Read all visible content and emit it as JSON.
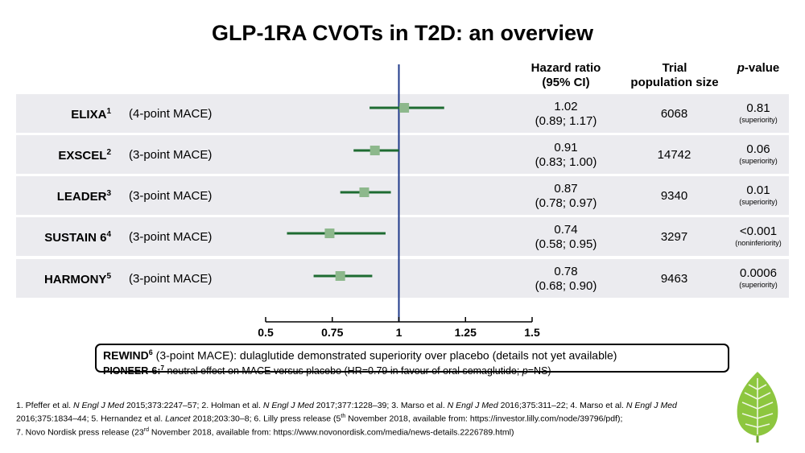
{
  "title": "GLP-1RA CVOTs in T2D: an overview",
  "headers": {
    "hr_line1": "Hazard ratio",
    "hr_line2": "(95% CI)",
    "pop_line1": "Trial",
    "pop_line2": "population size",
    "pval_italic": "p",
    "pval_rest": "-value"
  },
  "rows": [
    {
      "name": "ELIXA",
      "sup": "1",
      "mace": "(4-point MACE)",
      "hr": "1.02",
      "ci": "(0.89; 1.17)",
      "population": "6068",
      "p": "0.81",
      "p_type": "(superiority)"
    },
    {
      "name": "EXSCEL",
      "sup": "2",
      "mace": "(3-point MACE)",
      "hr": "0.91",
      "ci": "(0.83; 1.00)",
      "population": "14742",
      "p": "0.06",
      "p_type": "(superiority)"
    },
    {
      "name": "LEADER",
      "sup": "3",
      "mace": "(3-point MACE)",
      "hr": "0.87",
      "ci": "(0.78; 0.97)",
      "population": "9340",
      "p": "0.01",
      "p_type": "(superiority)"
    },
    {
      "name": "SUSTAIN 6",
      "sup": "4",
      "mace": "(3-point MACE)",
      "hr": "0.74",
      "ci": "(0.58; 0.95)",
      "population": "3297",
      "p": "<0.001",
      "p_type": "(noninferiority)"
    },
    {
      "name": "HARMONY",
      "sup": "5",
      "mace": "(3-point MACE)",
      "hr": "0.78",
      "ci": "(0.68; 0.90)",
      "population": "9463",
      "p": "0.0006",
      "p_type": "(superiority)"
    }
  ],
  "chart_data": {
    "type": "scatter",
    "subtype": "forest",
    "categories": [
      "ELIXA",
      "EXSCEL",
      "LEADER",
      "SUSTAIN 6",
      "HARMONY"
    ],
    "values": [
      1.02,
      0.91,
      0.87,
      0.74,
      0.78
    ],
    "lower": [
      0.89,
      0.83,
      0.78,
      0.58,
      0.68
    ],
    "upper": [
      1.17,
      1.0,
      0.97,
      0.95,
      0.9
    ],
    "xlim": [
      0.5,
      1.5
    ],
    "xticks": [
      "0.5",
      "0.75",
      "1",
      "1.25",
      "1.5"
    ],
    "reference_line": 1,
    "colors": {
      "ci": "#1e6b32",
      "marker": "#8db88c",
      "reference": "#1f3a8a",
      "row_bg": "#ebebef"
    }
  },
  "note": {
    "rewind_label": "REWIND",
    "rewind_sup": "6",
    "rewind_text": " (3-point MACE): dulaglutide demonstrated superiority over placebo (details not yet available)",
    "pioneer_label": "PIONEER-6:",
    "pioneer_sup": "7",
    "pioneer_text_a": " neutral effect on MACE versus placebo (HR=0.79 in favour of oral semaglutide; ",
    "pioneer_p": "p",
    "pioneer_text_b": "=NS)"
  },
  "references": {
    "r1a": "1. Pfeffer et al. ",
    "r1j": "N Engl J Med",
    "r1b": " 2015;373:2247–57; 2. Holman et al. ",
    "r2j": "N Engl J Med",
    "r2b": " 2017;377:1228–39; 3. Marso et al. ",
    "r3j": "N Engl J Med",
    "r3b": " 2016;375:311–22; 4. Marso et al. ",
    "r4j": "N Engl J Med",
    "r4b": " 2016;375:1834–44; 5. Hernandez et al. ",
    "r5j": "Lancet",
    "r5b": " 2018;203:30–8; 6. Lilly press release (5",
    "r6s": "th",
    "r6b": " November 2018, available from: https://investor.lilly.com/node/39796/pdf);",
    "r7a": "7. Novo Nordisk press release (23",
    "r7s": "rd",
    "r7b": " November 2018, available from: https://www.novonordisk.com/media/news-details.2226789.html)"
  },
  "logo": {
    "icon": "leaf-logo-icon",
    "color": "#8dc63f"
  }
}
